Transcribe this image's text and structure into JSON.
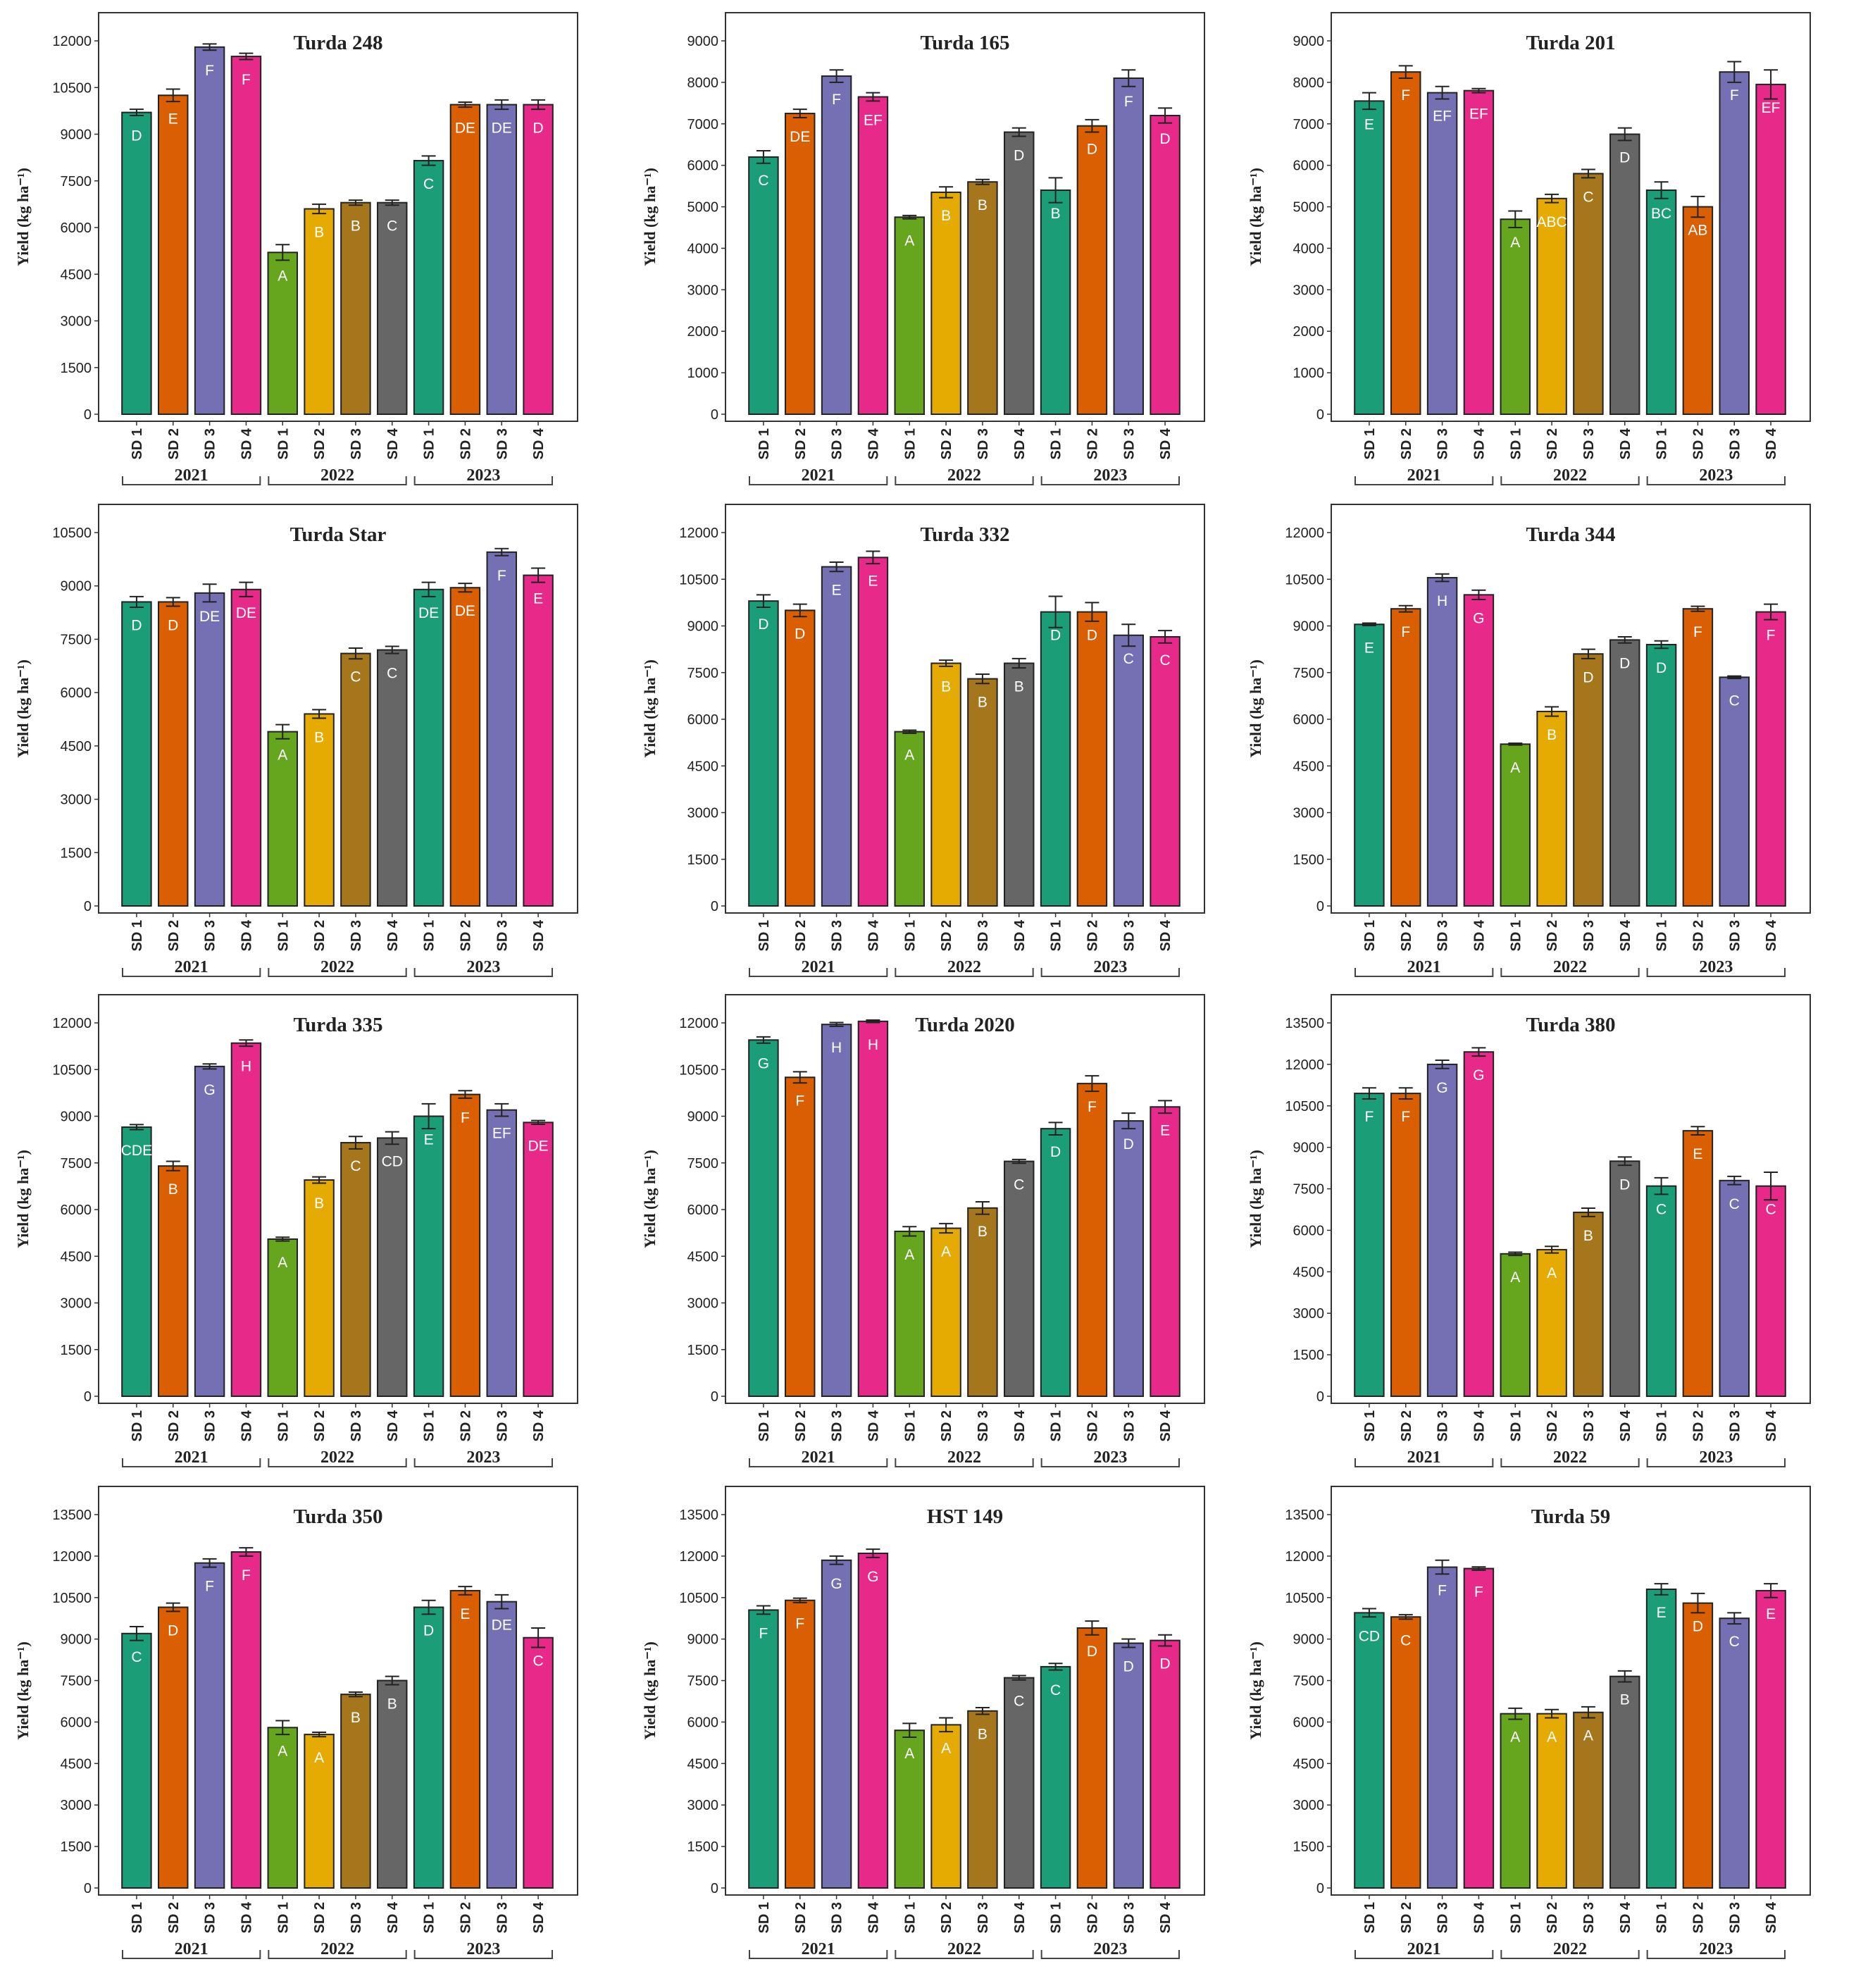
{
  "figure": {
    "ylabel": "Yield (kg ha⁻¹)",
    "categories": [
      "SD 1",
      "SD 2",
      "SD 3",
      "SD 4"
    ],
    "years": [
      "2021",
      "2022",
      "2023"
    ],
    "colors": {
      "2021": [
        "#1b9e77",
        "#d95f02",
        "#7570b3",
        "#e7298a"
      ],
      "2022": [
        "#66a61e",
        "#e6ab02",
        "#a6761d",
        "#666666"
      ],
      "2023": [
        "#1b9e77",
        "#d95f02",
        "#7570b3",
        "#e7298a"
      ]
    }
  },
  "chart_data": [
    {
      "type": "bar",
      "title": "Turda 248",
      "ylim": [
        0,
        12000
      ],
      "yticks": [
        0,
        1500,
        3000,
        4500,
        6000,
        7500,
        9000,
        10500,
        12000
      ],
      "values": [
        9700,
        10250,
        11800,
        11500,
        5200,
        6600,
        6800,
        6800,
        8150,
        9950,
        9950,
        9950
      ],
      "errors": [
        100,
        200,
        100,
        100,
        250,
        150,
        80,
        80,
        150,
        80,
        150,
        150
      ],
      "letters": [
        "D",
        "E",
        "F",
        "F",
        "A",
        "B",
        "B",
        "C",
        "C",
        "DE",
        "DE",
        "D"
      ]
    },
    {
      "type": "bar",
      "title": "Turda 165",
      "ylim": [
        0,
        9000
      ],
      "yticks": [
        0,
        1000,
        2000,
        3000,
        4000,
        5000,
        6000,
        7000,
        8000,
        9000
      ],
      "values": [
        6200,
        7250,
        8150,
        7650,
        4750,
        5350,
        5600,
        6800,
        5400,
        6950,
        8100,
        7200
      ],
      "errors": [
        150,
        100,
        150,
        100,
        40,
        130,
        60,
        100,
        300,
        150,
        200,
        180
      ],
      "letters": [
        "C",
        "DE",
        "F",
        "EF",
        "A",
        "B",
        "B",
        "D",
        "B",
        "D",
        "F",
        "D"
      ]
    },
    {
      "type": "bar",
      "title": "Turda 201",
      "ylim": [
        0,
        9000
      ],
      "yticks": [
        0,
        1000,
        2000,
        3000,
        4000,
        5000,
        6000,
        7000,
        8000,
        9000
      ],
      "values": [
        7550,
        8250,
        7750,
        7800,
        4700,
        5200,
        5800,
        6750,
        5400,
        5000,
        8250,
        7950
      ],
      "errors": [
        200,
        150,
        150,
        50,
        200,
        100,
        100,
        150,
        200,
        250,
        250,
        350
      ],
      "letters": [
        "E",
        "F",
        "EF",
        "EF",
        "A",
        "ABC",
        "C",
        "D",
        "BC",
        "AB",
        "F",
        "EF"
      ]
    },
    {
      "type": "bar",
      "title": "Turda Star",
      "ylim": [
        0,
        10500
      ],
      "yticks": [
        0,
        1500,
        3000,
        4500,
        6000,
        7500,
        9000,
        10500
      ],
      "values": [
        8550,
        8550,
        8800,
        8900,
        4900,
        5400,
        7100,
        7200,
        8900,
        8950,
        9950,
        9300
      ],
      "errors": [
        150,
        120,
        250,
        200,
        200,
        120,
        150,
        100,
        200,
        120,
        100,
        200
      ],
      "letters": [
        "D",
        "D",
        "DE",
        "DE",
        "A",
        "B",
        "C",
        "C",
        "DE",
        "DE",
        "F",
        "E"
      ]
    },
    {
      "type": "bar",
      "title": "Turda 332",
      "ylim": [
        0,
        12000
      ],
      "yticks": [
        0,
        1500,
        3000,
        4500,
        6000,
        7500,
        9000,
        10500,
        12000
      ],
      "values": [
        9800,
        9500,
        10900,
        11200,
        5600,
        7800,
        7300,
        7800,
        9450,
        9450,
        8700,
        8650
      ],
      "errors": [
        200,
        200,
        150,
        200,
        50,
        100,
        150,
        150,
        500,
        300,
        350,
        200
      ],
      "letters": [
        "D",
        "D",
        "E",
        "E",
        "A",
        "B",
        "B",
        "B",
        "D",
        "D",
        "C",
        "C"
      ]
    },
    {
      "type": "bar",
      "title": "Turda 344",
      "ylim": [
        0,
        12000
      ],
      "yticks": [
        0,
        1500,
        3000,
        4500,
        6000,
        7500,
        9000,
        10500,
        12000
      ],
      "values": [
        9050,
        9550,
        10550,
        10000,
        5200,
        6250,
        8100,
        8550,
        8400,
        9550,
        7350,
        9450
      ],
      "errors": [
        40,
        100,
        120,
        150,
        30,
        150,
        150,
        100,
        120,
        80,
        40,
        250
      ],
      "letters": [
        "E",
        "F",
        "H",
        "G",
        "A",
        "B",
        "D",
        "D",
        "D",
        "F",
        "C",
        "F"
      ]
    },
    {
      "type": "bar",
      "title": "Turda 335",
      "ylim": [
        0,
        12000
      ],
      "yticks": [
        0,
        1500,
        3000,
        4500,
        6000,
        7500,
        9000,
        10500,
        12000
      ],
      "values": [
        8650,
        7400,
        10600,
        11350,
        5050,
        6950,
        8150,
        8300,
        9000,
        9700,
        9200,
        8800
      ],
      "errors": [
        80,
        150,
        80,
        100,
        60,
        100,
        200,
        200,
        400,
        120,
        200,
        60
      ],
      "letters": [
        "CDE",
        "B",
        "G",
        "H",
        "A",
        "B",
        "C",
        "CD",
        "E",
        "F",
        "EF",
        "DE"
      ]
    },
    {
      "type": "bar",
      "title": "Turda 2020",
      "ylim": [
        0,
        12000
      ],
      "yticks": [
        0,
        1500,
        3000,
        4500,
        6000,
        7500,
        9000,
        10500,
        12000
      ],
      "values": [
        11450,
        10250,
        11950,
        12050,
        5300,
        5400,
        6050,
        7550,
        8600,
        10050,
        8850,
        9300
      ],
      "errors": [
        100,
        180,
        60,
        40,
        150,
        150,
        200,
        60,
        200,
        250,
        250,
        200
      ],
      "letters": [
        "G",
        "F",
        "H",
        "H",
        "A",
        "A",
        "B",
        "C",
        "D",
        "F",
        "D",
        "E"
      ]
    },
    {
      "type": "bar",
      "title": "Turda 380",
      "ylim": [
        0,
        13500
      ],
      "yticks": [
        0,
        1500,
        3000,
        4500,
        6000,
        7500,
        9000,
        10500,
        12000,
        13500
      ],
      "values": [
        10950,
        10950,
        12000,
        12450,
        5150,
        5300,
        6650,
        8500,
        7600,
        9600,
        7800,
        7600
      ],
      "errors": [
        200,
        200,
        150,
        150,
        60,
        120,
        150,
        150,
        300,
        150,
        150,
        500
      ],
      "letters": [
        "F",
        "F",
        "G",
        "G",
        "A",
        "A",
        "B",
        "D",
        "C",
        "E",
        "C",
        "C"
      ]
    },
    {
      "type": "bar",
      "title": "Turda 350",
      "ylim": [
        0,
        13500
      ],
      "yticks": [
        0,
        1500,
        3000,
        4500,
        6000,
        7500,
        9000,
        10500,
        12000,
        13500
      ],
      "values": [
        9200,
        10150,
        11750,
        12150,
        5800,
        5550,
        7000,
        7500,
        10150,
        10750,
        10350,
        9050
      ],
      "errors": [
        250,
        150,
        150,
        150,
        250,
        80,
        80,
        150,
        250,
        150,
        250,
        350
      ],
      "letters": [
        "C",
        "D",
        "F",
        "F",
        "A",
        "A",
        "B",
        "B",
        "D",
        "E",
        "DE",
        "C"
      ]
    },
    {
      "type": "bar",
      "title": "HST 149",
      "ylim": [
        0,
        13500
      ],
      "yticks": [
        0,
        1500,
        3000,
        4500,
        6000,
        7500,
        9000,
        10500,
        12000,
        13500
      ],
      "values": [
        10050,
        10400,
        11850,
        12100,
        5700,
        5900,
        6400,
        7600,
        8000,
        9400,
        8850,
        8950
      ],
      "errors": [
        150,
        80,
        150,
        150,
        250,
        250,
        120,
        80,
        120,
        250,
        150,
        200
      ],
      "letters": [
        "F",
        "F",
        "G",
        "G",
        "A",
        "A",
        "B",
        "C",
        "C",
        "D",
        "D",
        "D"
      ]
    },
    {
      "type": "bar",
      "title": "Turda 59",
      "ylim": [
        0,
        13500
      ],
      "yticks": [
        0,
        1500,
        3000,
        4500,
        6000,
        7500,
        9000,
        10500,
        12000,
        13500
      ],
      "values": [
        9950,
        9800,
        11600,
        11550,
        6300,
        6300,
        6350,
        7650,
        10800,
        10300,
        9750,
        10750
      ],
      "errors": [
        150,
        80,
        250,
        60,
        200,
        150,
        200,
        200,
        200,
        350,
        200,
        250
      ],
      "letters": [
        "CD",
        "C",
        "F",
        "F",
        "A",
        "A",
        "A",
        "B",
        "E",
        "D",
        "C",
        "E"
      ]
    }
  ]
}
